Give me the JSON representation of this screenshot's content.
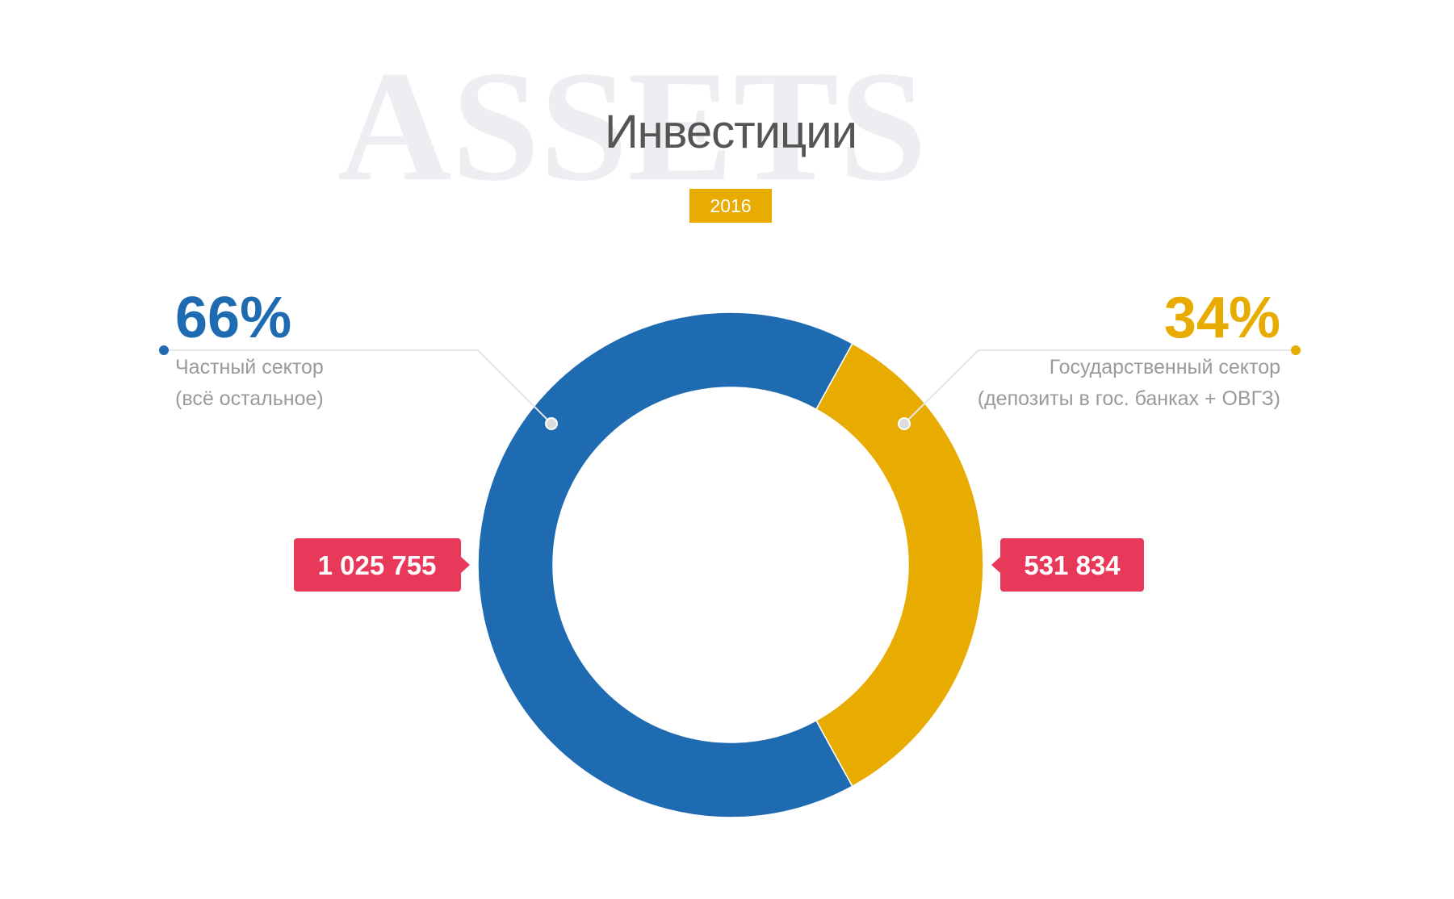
{
  "chart_data": {
    "type": "pie",
    "watermark": "ASSETS",
    "title": "Инвестиции",
    "subtitle": "2016",
    "categories": [
      "Частный сектор",
      "Государственный сектор"
    ],
    "category_notes": [
      "(всё остальное)",
      "(депозиты в гос. банках + ОВГЗ)"
    ],
    "values": [
      66,
      34
    ],
    "value_labels": [
      "66%",
      "34%"
    ],
    "colors": [
      "#1f6bb2",
      "#e8ab00"
    ],
    "amounts": [
      1025755,
      531834
    ],
    "amount_labels": [
      "1 025 755",
      "531 834"
    ],
    "badge_color": "#e8395a"
  }
}
